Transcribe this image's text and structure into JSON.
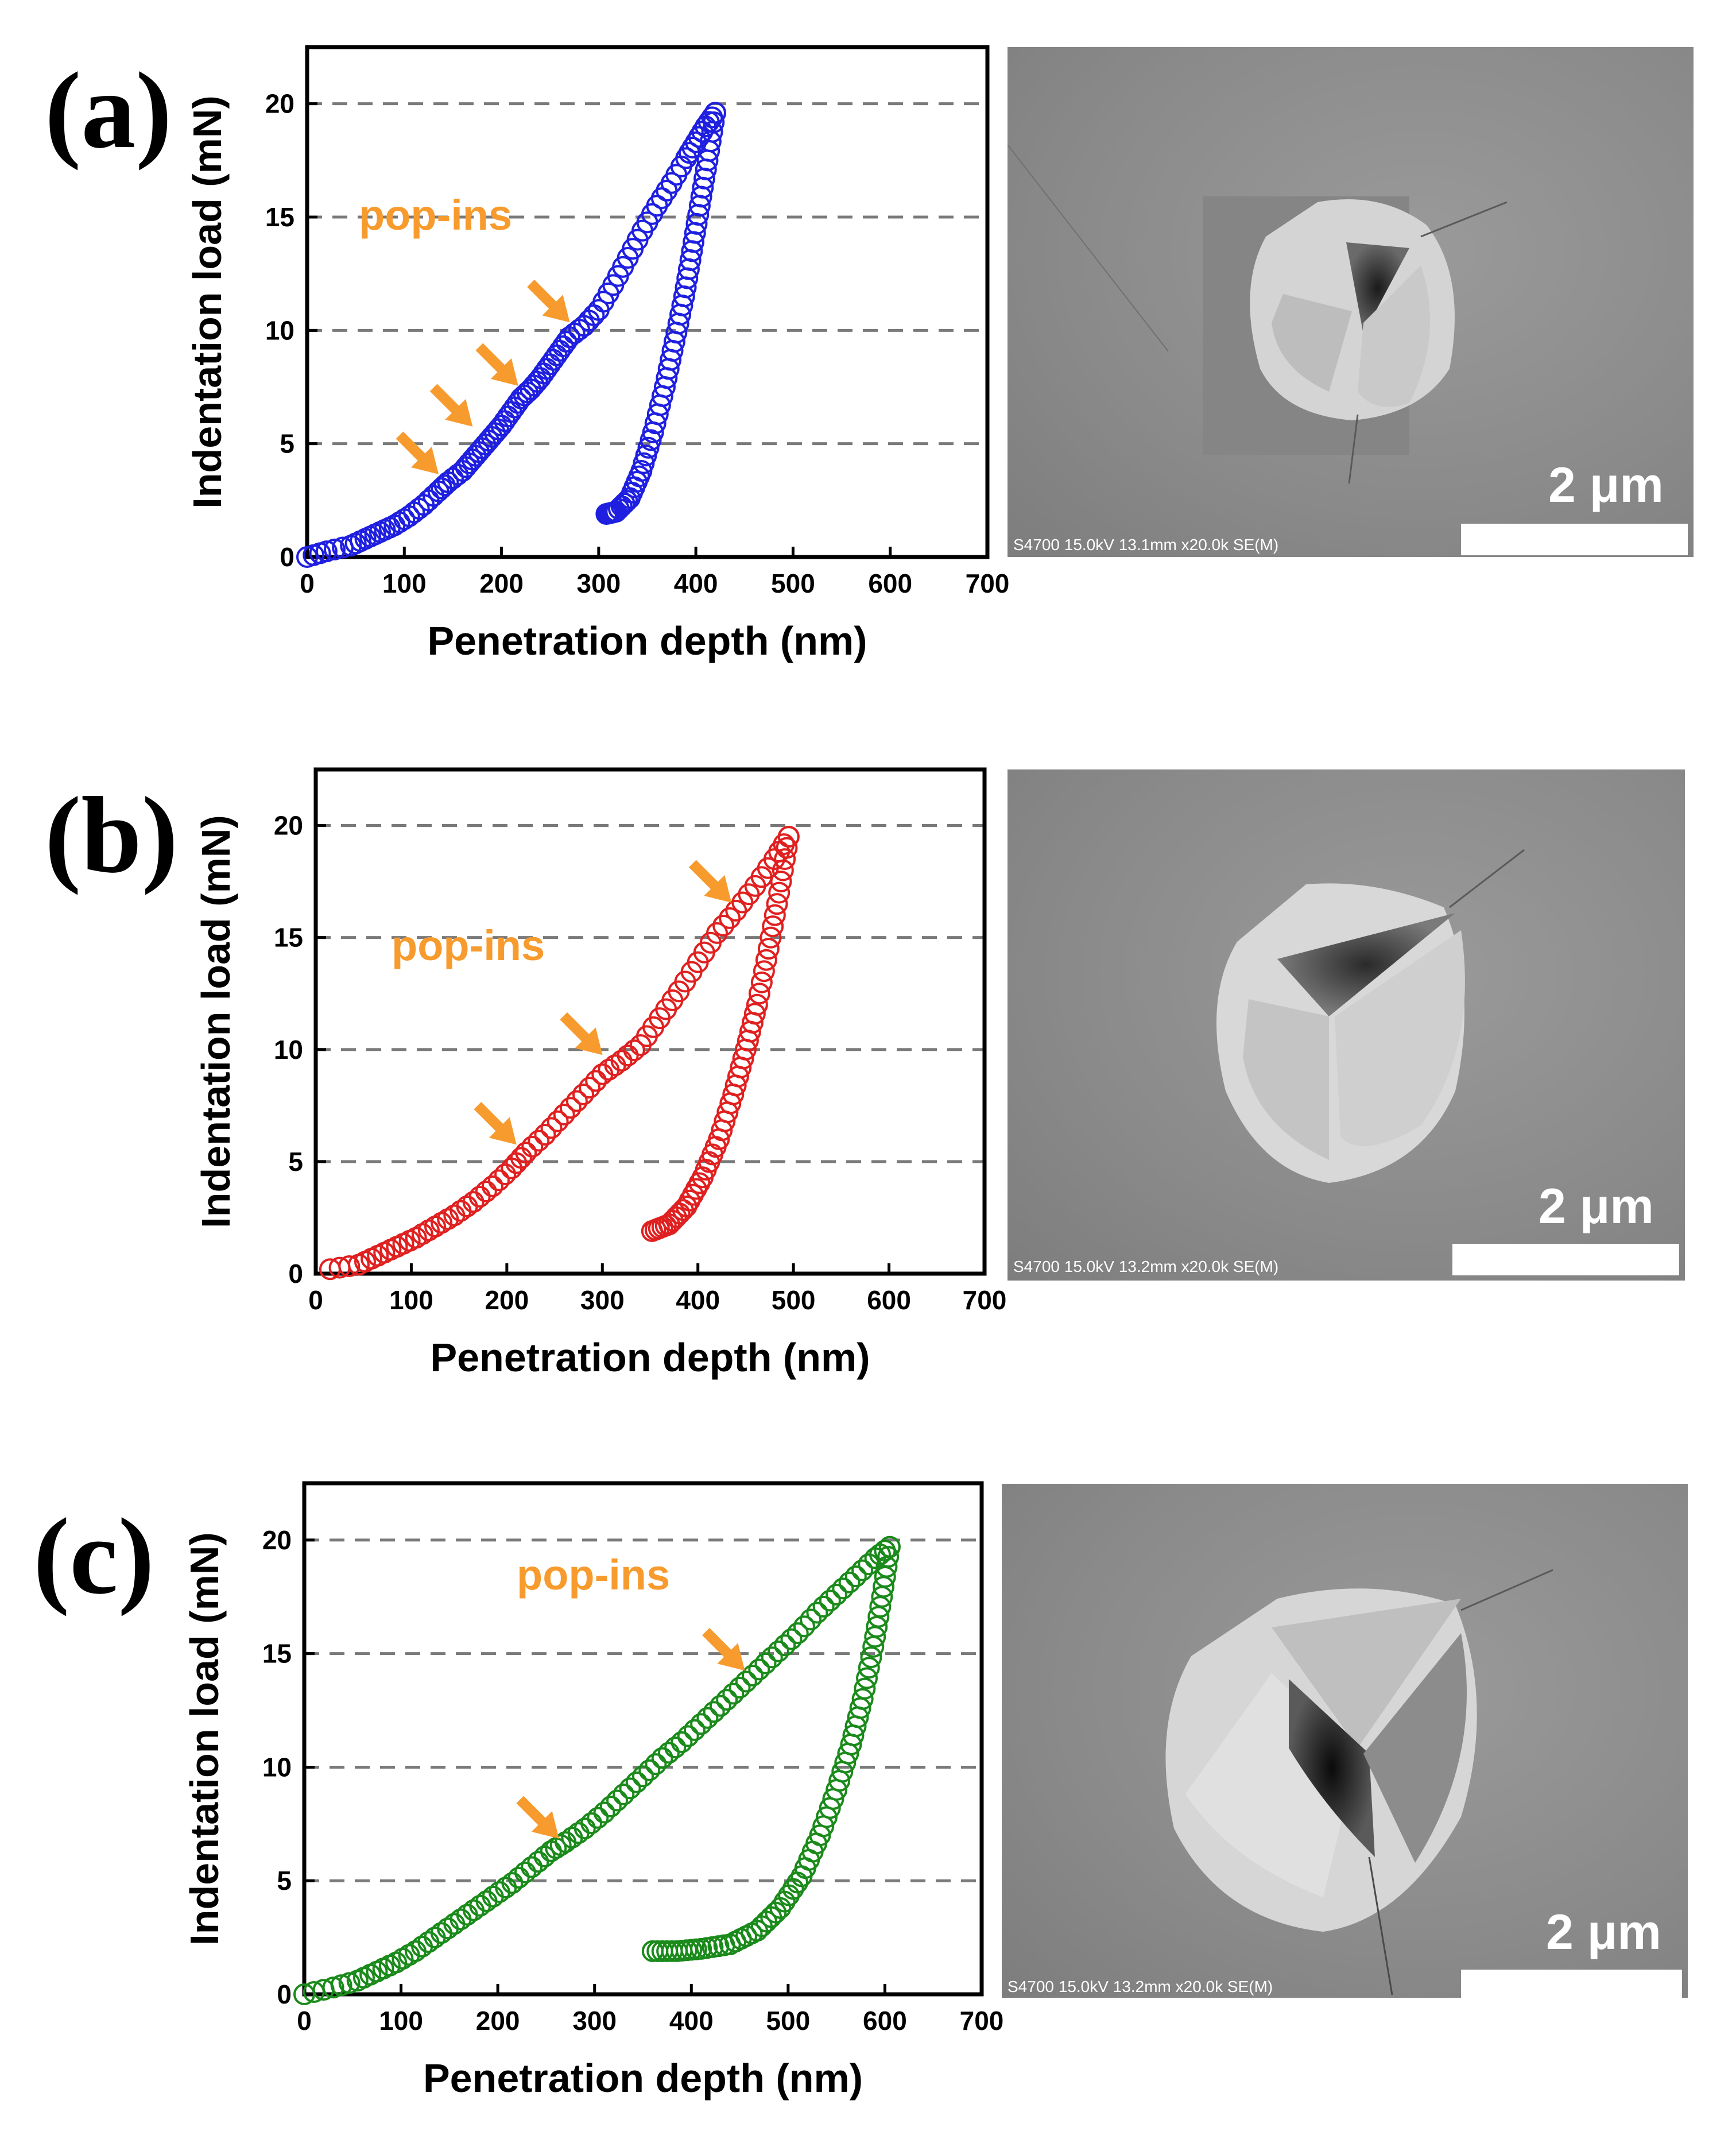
{
  "chart_data": [
    {
      "type": "scatter",
      "panel_label": "(a)",
      "xlabel": "Penetration depth (nm)",
      "ylabel": "Indentation load (mN)",
      "xlim": [
        0,
        700
      ],
      "ylim": [
        0,
        22.5
      ],
      "xticks": [
        "0",
        "100",
        "200",
        "300",
        "400",
        "500",
        "600",
        "700"
      ],
      "yticks": [
        "0",
        "5",
        "10",
        "15",
        "20"
      ],
      "grid_y": [
        5,
        10,
        15,
        20
      ],
      "color": "#1f1fe0",
      "annotation": "pop-ins",
      "loading": [
        [
          0,
          0
        ],
        [
          20,
          0.25
        ],
        [
          45,
          0.5
        ],
        [
          60,
          0.8
        ],
        [
          75,
          1.1
        ],
        [
          90,
          1.4
        ],
        [
          105,
          1.8
        ],
        [
          120,
          2.3
        ],
        [
          135,
          2.9
        ],
        [
          145,
          3.3
        ],
        [
          160,
          3.8
        ],
        [
          170,
          4.3
        ],
        [
          180,
          4.8
        ],
        [
          190,
          5.3
        ],
        [
          200,
          5.8
        ],
        [
          210,
          6.4
        ],
        [
          220,
          7.0
        ],
        [
          230,
          7.4
        ],
        [
          240,
          7.9
        ],
        [
          250,
          8.5
        ],
        [
          260,
          9.1
        ],
        [
          270,
          9.7
        ],
        [
          285,
          10.2
        ],
        [
          300,
          10.9
        ],
        [
          315,
          12.0
        ],
        [
          330,
          13.2
        ],
        [
          345,
          14.4
        ],
        [
          360,
          15.5
        ],
        [
          375,
          16.5
        ],
        [
          390,
          17.6
        ],
        [
          400,
          18.3
        ],
        [
          410,
          19.0
        ],
        [
          420,
          19.6
        ]
      ],
      "unloading": [
        [
          420,
          19.6
        ],
        [
          412,
          17.5
        ],
        [
          404,
          15.5
        ],
        [
          396,
          13.5
        ],
        [
          388,
          11.5
        ],
        [
          378,
          9.5
        ],
        [
          368,
          7.5
        ],
        [
          356,
          5.5
        ],
        [
          344,
          3.8
        ],
        [
          332,
          2.6
        ],
        [
          318,
          2.0
        ],
        [
          308,
          1.9
        ]
      ],
      "popin_points": [
        [
          140,
          3.4
        ],
        [
          175,
          5.5
        ],
        [
          222,
          7.3
        ],
        [
          275,
          10.1
        ]
      ],
      "sem": {
        "scale_text": "2 μm",
        "footer": "S4700 15.0kV 13.1mm x20.0k SE(M)"
      }
    },
    {
      "type": "scatter",
      "panel_label": "(b)",
      "xlabel": "Penetration depth (nm)",
      "ylabel": "Indentation load (mN)",
      "xlim": [
        0,
        700
      ],
      "ylim": [
        0,
        22.5
      ],
      "xticks": [
        "0",
        "100",
        "200",
        "300",
        "400",
        "500",
        "600",
        "700"
      ],
      "yticks": [
        "0",
        "5",
        "10",
        "15",
        "20"
      ],
      "grid_y": [
        5,
        10,
        15,
        20
      ],
      "color": "#e02020",
      "annotation": "pop-ins",
      "loading": [
        [
          15,
          0.2
        ],
        [
          45,
          0.4
        ],
        [
          65,
          0.8
        ],
        [
          85,
          1.2
        ],
        [
          105,
          1.6
        ],
        [
          125,
          2.1
        ],
        [
          145,
          2.6
        ],
        [
          165,
          3.2
        ],
        [
          185,
          3.9
        ],
        [
          205,
          4.7
        ],
        [
          220,
          5.4
        ],
        [
          240,
          6.2
        ],
        [
          260,
          7.1
        ],
        [
          280,
          8.0
        ],
        [
          300,
          8.9
        ],
        [
          320,
          9.5
        ],
        [
          340,
          10.2
        ],
        [
          360,
          11.4
        ],
        [
          380,
          12.6
        ],
        [
          400,
          13.9
        ],
        [
          420,
          15.2
        ],
        [
          440,
          16.2
        ],
        [
          460,
          17.3
        ],
        [
          480,
          18.5
        ],
        [
          495,
          19.5
        ]
      ],
      "unloading": [
        [
          495,
          19.5
        ],
        [
          485,
          17.0
        ],
        [
          474,
          14.5
        ],
        [
          462,
          12.0
        ],
        [
          450,
          10.0
        ],
        [
          437,
          8.0
        ],
        [
          422,
          6.0
        ],
        [
          405,
          4.3
        ],
        [
          388,
          3.0
        ],
        [
          370,
          2.2
        ],
        [
          352,
          1.9
        ]
      ],
      "popin_points": [
        [
          215,
          5.5
        ],
        [
          305,
          9.5
        ],
        [
          440,
          16.3
        ]
      ],
      "sem": {
        "scale_text": "2 μm",
        "footer": "S4700 15.0kV 13.2mm x20.0k SE(M)"
      }
    },
    {
      "type": "scatter",
      "panel_label": "(c)",
      "xlabel": "Penetration depth (nm)",
      "ylabel": "Indentation load (mN)",
      "xlim": [
        0,
        700
      ],
      "ylim": [
        0,
        22.5
      ],
      "xticks": [
        "0",
        "100",
        "200",
        "300",
        "400",
        "500",
        "600",
        "700"
      ],
      "yticks": [
        "0",
        "5",
        "10",
        "15",
        "20"
      ],
      "grid_y": [
        5,
        10,
        15,
        20
      ],
      "color": "#1a8a1a",
      "annotation": "pop-ins",
      "loading": [
        [
          0,
          0
        ],
        [
          30,
          0.3
        ],
        [
          55,
          0.6
        ],
        [
          75,
          1.0
        ],
        [
          95,
          1.4
        ],
        [
          115,
          1.9
        ],
        [
          135,
          2.5
        ],
        [
          155,
          3.1
        ],
        [
          175,
          3.7
        ],
        [
          195,
          4.3
        ],
        [
          215,
          4.9
        ],
        [
          235,
          5.6
        ],
        [
          255,
          6.3
        ],
        [
          270,
          6.7
        ],
        [
          290,
          7.3
        ],
        [
          310,
          8.0
        ],
        [
          330,
          8.8
        ],
        [
          350,
          9.6
        ],
        [
          370,
          10.4
        ],
        [
          390,
          11.1
        ],
        [
          410,
          11.9
        ],
        [
          430,
          12.7
        ],
        [
          450,
          13.5
        ],
        [
          470,
          14.3
        ],
        [
          490,
          15.1
        ],
        [
          510,
          15.9
        ],
        [
          530,
          16.8
        ],
        [
          550,
          17.6
        ],
        [
          570,
          18.4
        ],
        [
          590,
          19.2
        ],
        [
          605,
          19.7
        ]
      ],
      "unloading": [
        [
          605,
          19.7
        ],
        [
          597,
          17.5
        ],
        [
          588,
          15.3
        ],
        [
          577,
          13.0
        ],
        [
          565,
          11.0
        ],
        [
          550,
          9.0
        ],
        [
          533,
          7.0
        ],
        [
          514,
          5.2
        ],
        [
          492,
          3.8
        ],
        [
          468,
          2.8
        ],
        [
          440,
          2.2
        ],
        [
          410,
          2.0
        ],
        [
          385,
          1.9
        ],
        [
          360,
          1.9
        ]
      ],
      "popin_points": [
        [
          268,
          6.6
        ],
        [
          460,
          14.0
        ]
      ],
      "sem": {
        "scale_text": "2 μm",
        "footer": "S4700 15.0kV 13.2mm x20.0k SE(M)"
      }
    }
  ]
}
